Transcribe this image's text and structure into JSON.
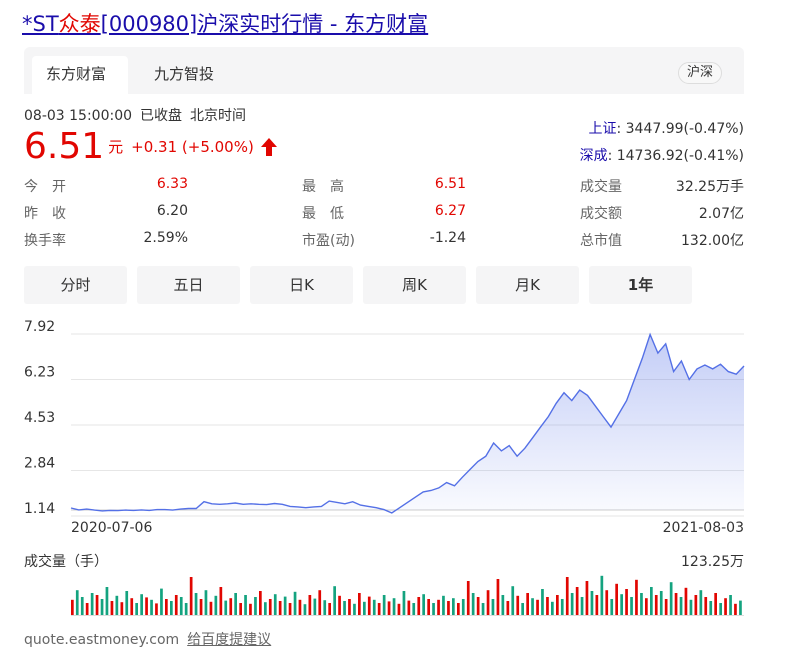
{
  "title": {
    "prefix": "*ST",
    "name": "众泰",
    "code": "[000980]",
    "suffix": "沪深实时行情 - 东方财富"
  },
  "tabs": [
    {
      "label": "东方财富",
      "active": true
    },
    {
      "label": "九方智投",
      "active": false
    }
  ],
  "market_pill": "沪深",
  "quote_time": {
    "datetime": "08-03 15:00:00",
    "status": "已收盘",
    "zone": "北京时间"
  },
  "price": {
    "value": "6.51",
    "unit": "元",
    "change": "+0.31 (+5.00%)",
    "direction": "up"
  },
  "indices": [
    {
      "name": "上证",
      "value": ": 3447.99(-0.47%)"
    },
    {
      "name": "深成",
      "value": ": 14736.92(-0.41%)"
    }
  ],
  "stats": {
    "open": {
      "label": "今　开",
      "value": "6.33"
    },
    "prev_close": {
      "label": "昨　收",
      "value": "6.20"
    },
    "turnover_rate": {
      "label": "换手率",
      "value": "2.59%"
    },
    "high": {
      "label": "最　高",
      "value": "6.51"
    },
    "low": {
      "label": "最　低",
      "value": "6.27"
    },
    "pe": {
      "label": "市盈(动)",
      "value": "-1.24"
    },
    "volume": {
      "label": "成交量",
      "value": "32.25万手"
    },
    "amount": {
      "label": "成交额",
      "value": "2.07亿"
    },
    "market_cap": {
      "label": "总市值",
      "value": "132.00亿"
    }
  },
  "periods": [
    {
      "label": "分时",
      "active": false
    },
    {
      "label": "五日",
      "active": false
    },
    {
      "label": "日K",
      "active": false
    },
    {
      "label": "周K",
      "active": false
    },
    {
      "label": "月K",
      "active": false
    },
    {
      "label": "1年",
      "active": true
    }
  ],
  "colors": {
    "line": "#5470e6",
    "up": "#e10601",
    "down": "#14a37f",
    "link": "#1a0dab"
  },
  "chart_data": {
    "type": "area",
    "y_ticks": [
      "7.92",
      "6.23",
      "4.53",
      "2.84",
      "1.14"
    ],
    "ylim": [
      1.14,
      7.92
    ],
    "x_labels": [
      "2020-07-06",
      "2021-08-03"
    ],
    "series": [
      {
        "values": [
          1.14,
          1.07,
          1.1,
          1.06,
          1.03,
          1.05,
          1.04,
          1.06,
          1.05,
          1.07,
          1.05,
          1.08,
          1.08,
          1.06,
          1.1,
          1.12,
          1.12,
          1.38,
          1.3,
          1.28,
          1.3,
          1.33,
          1.28,
          1.3,
          1.28,
          1.27,
          1.31,
          1.28,
          1.2,
          1.18,
          1.15,
          1.18,
          1.2,
          1.4,
          1.35,
          1.3,
          1.38,
          1.25,
          1.2,
          1.15,
          1.08,
          0.95,
          1.15,
          1.35,
          1.55,
          1.75,
          1.8,
          1.9,
          2.1,
          1.98,
          2.3,
          2.6,
          2.9,
          3.1,
          3.6,
          3.3,
          3.5,
          3.1,
          3.4,
          3.8,
          4.2,
          4.6,
          5.1,
          5.5,
          5.2,
          5.6,
          5.4,
          5.0,
          4.6,
          4.2,
          4.7,
          5.2,
          6.0,
          6.8,
          7.7,
          7.0,
          7.35,
          6.3,
          6.7,
          6.0,
          6.4,
          6.55,
          6.4,
          6.58,
          6.3,
          6.2,
          6.51
        ]
      }
    ]
  },
  "volume": {
    "label": "成交量（手）",
    "max_label": "123.25万",
    "bars": [
      [
        0.38,
        "up"
      ],
      [
        0.62,
        "down"
      ],
      [
        0.45,
        "down"
      ],
      [
        0.3,
        "up"
      ],
      [
        0.55,
        "down"
      ],
      [
        0.5,
        "up"
      ],
      [
        0.4,
        "down"
      ],
      [
        0.7,
        "down"
      ],
      [
        0.35,
        "up"
      ],
      [
        0.48,
        "down"
      ],
      [
        0.32,
        "up"
      ],
      [
        0.6,
        "down"
      ],
      [
        0.42,
        "up"
      ],
      [
        0.3,
        "down"
      ],
      [
        0.52,
        "down"
      ],
      [
        0.44,
        "up"
      ],
      [
        0.38,
        "down"
      ],
      [
        0.29,
        "up"
      ],
      [
        0.66,
        "down"
      ],
      [
        0.4,
        "up"
      ],
      [
        0.35,
        "down"
      ],
      [
        0.5,
        "up"
      ],
      [
        0.45,
        "down"
      ],
      [
        0.3,
        "down"
      ],
      [
        0.95,
        "up"
      ],
      [
        0.55,
        "down"
      ],
      [
        0.4,
        "up"
      ],
      [
        0.62,
        "down"
      ],
      [
        0.33,
        "up"
      ],
      [
        0.48,
        "down"
      ],
      [
        0.7,
        "up"
      ],
      [
        0.36,
        "down"
      ],
      [
        0.42,
        "up"
      ],
      [
        0.55,
        "down"
      ],
      [
        0.3,
        "up"
      ],
      [
        0.5,
        "down"
      ],
      [
        0.28,
        "up"
      ],
      [
        0.45,
        "down"
      ],
      [
        0.6,
        "up"
      ],
      [
        0.32,
        "down"
      ],
      [
        0.4,
        "up"
      ],
      [
        0.52,
        "down"
      ],
      [
        0.35,
        "up"
      ],
      [
        0.46,
        "down"
      ],
      [
        0.3,
        "up"
      ],
      [
        0.58,
        "down"
      ],
      [
        0.38,
        "up"
      ],
      [
        0.27,
        "down"
      ],
      [
        0.5,
        "up"
      ],
      [
        0.41,
        "down"
      ],
      [
        0.62,
        "up"
      ],
      [
        0.37,
        "down"
      ],
      [
        0.3,
        "up"
      ],
      [
        0.72,
        "down"
      ],
      [
        0.48,
        "up"
      ],
      [
        0.35,
        "down"
      ],
      [
        0.4,
        "up"
      ],
      [
        0.28,
        "down"
      ],
      [
        0.55,
        "up"
      ],
      [
        0.33,
        "down"
      ],
      [
        0.46,
        "up"
      ],
      [
        0.38,
        "down"
      ],
      [
        0.3,
        "up"
      ],
      [
        0.5,
        "down"
      ],
      [
        0.34,
        "up"
      ],
      [
        0.42,
        "down"
      ],
      [
        0.28,
        "up"
      ],
      [
        0.6,
        "down"
      ],
      [
        0.36,
        "up"
      ],
      [
        0.3,
        "down"
      ],
      [
        0.45,
        "up"
      ],
      [
        0.52,
        "down"
      ],
      [
        0.4,
        "up"
      ],
      [
        0.3,
        "down"
      ],
      [
        0.38,
        "up"
      ],
      [
        0.48,
        "down"
      ],
      [
        0.35,
        "up"
      ],
      [
        0.42,
        "down"
      ],
      [
        0.3,
        "up"
      ],
      [
        0.4,
        "down"
      ],
      [
        0.85,
        "up"
      ],
      [
        0.55,
        "down"
      ],
      [
        0.45,
        "up"
      ],
      [
        0.3,
        "down"
      ],
      [
        0.62,
        "up"
      ],
      [
        0.4,
        "down"
      ],
      [
        0.9,
        "up"
      ],
      [
        0.5,
        "down"
      ],
      [
        0.35,
        "up"
      ],
      [
        0.72,
        "down"
      ],
      [
        0.48,
        "up"
      ],
      [
        0.3,
        "down"
      ],
      [
        0.55,
        "up"
      ],
      [
        0.42,
        "down"
      ],
      [
        0.38,
        "up"
      ],
      [
        0.65,
        "down"
      ],
      [
        0.45,
        "up"
      ],
      [
        0.33,
        "down"
      ],
      [
        0.5,
        "up"
      ],
      [
        0.4,
        "down"
      ],
      [
        0.95,
        "up"
      ],
      [
        0.55,
        "down"
      ],
      [
        0.7,
        "up"
      ],
      [
        0.45,
        "down"
      ],
      [
        0.85,
        "up"
      ],
      [
        0.6,
        "down"
      ],
      [
        0.5,
        "up"
      ],
      [
        0.98,
        "down"
      ],
      [
        0.62,
        "up"
      ],
      [
        0.4,
        "down"
      ],
      [
        0.78,
        "up"
      ],
      [
        0.52,
        "down"
      ],
      [
        0.65,
        "up"
      ],
      [
        0.45,
        "down"
      ],
      [
        0.88,
        "up"
      ],
      [
        0.55,
        "down"
      ],
      [
        0.42,
        "up"
      ],
      [
        0.7,
        "down"
      ],
      [
        0.5,
        "up"
      ],
      [
        0.6,
        "down"
      ],
      [
        0.4,
        "up"
      ],
      [
        0.82,
        "down"
      ],
      [
        0.55,
        "up"
      ],
      [
        0.45,
        "down"
      ],
      [
        0.68,
        "up"
      ],
      [
        0.38,
        "down"
      ],
      [
        0.5,
        "up"
      ],
      [
        0.62,
        "down"
      ],
      [
        0.45,
        "up"
      ],
      [
        0.35,
        "down"
      ],
      [
        0.55,
        "up"
      ],
      [
        0.3,
        "down"
      ],
      [
        0.42,
        "up"
      ],
      [
        0.5,
        "down"
      ],
      [
        0.28,
        "up"
      ],
      [
        0.36,
        "down"
      ]
    ]
  },
  "footer": {
    "site": "quote.eastmoney.com",
    "feedback": "给百度提建议"
  }
}
